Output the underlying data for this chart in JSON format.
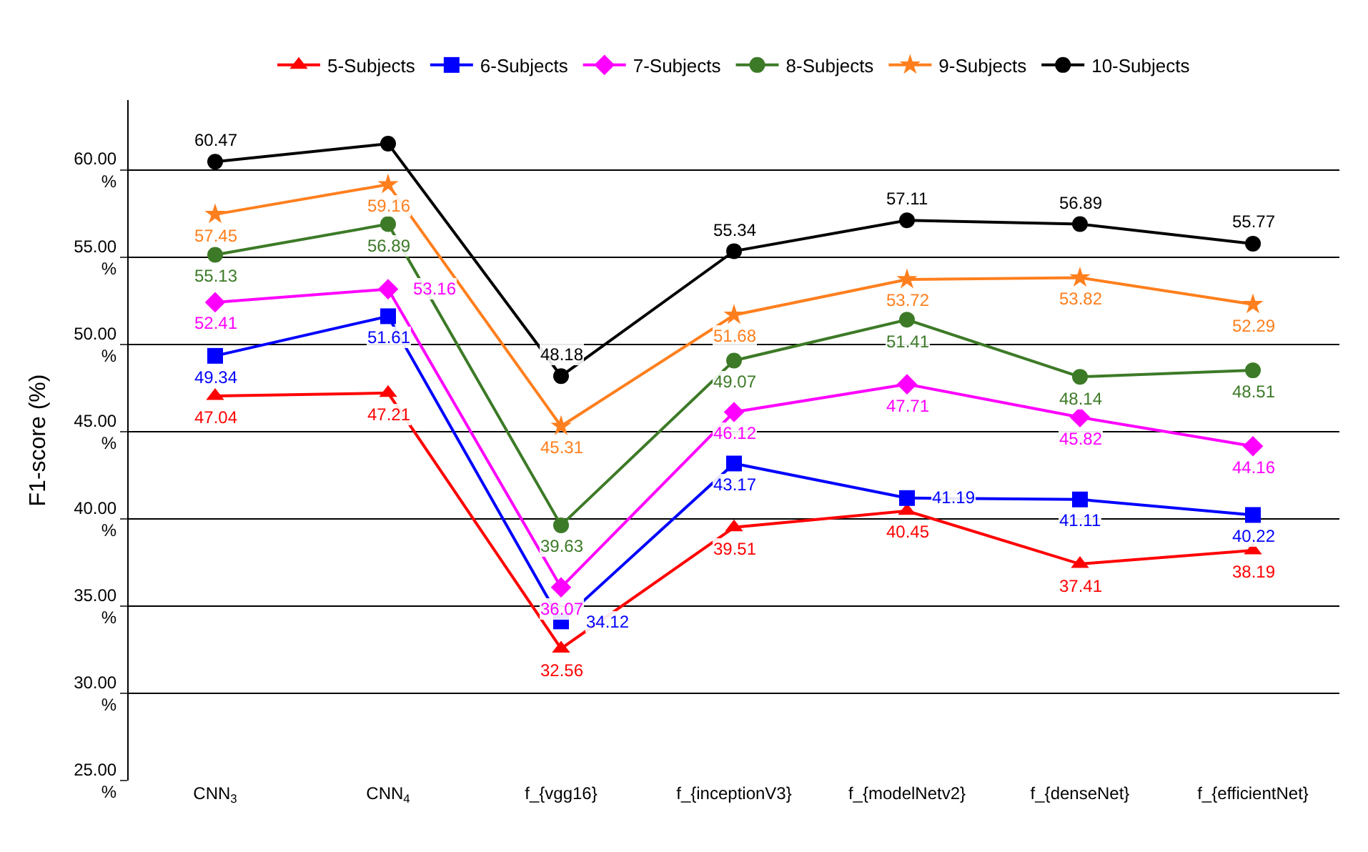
{
  "chart_data": {
    "type": "line",
    "ylabel": "F1-score (%)",
    "categories": [
      "CNN$_{3}$",
      "CNN$_{4}$",
      "f_{vgg16}",
      "f_{inceptionV3}",
      "f_{modelNetv2}",
      "f_{denseNet}",
      "f_{efficientNet}"
    ],
    "ylim": [
      25,
      64
    ],
    "yticks": [
      {
        "value": 25,
        "label": "25.00\n%"
      },
      {
        "value": 30,
        "label": "30.00\n%"
      },
      {
        "value": 35,
        "label": "35.00\n%"
      },
      {
        "value": 40,
        "label": "40.00\n%"
      },
      {
        "value": 45,
        "label": "45.00\n%"
      },
      {
        "value": 50,
        "label": "50.00\n%"
      },
      {
        "value": 55,
        "label": "55.00\n%"
      },
      {
        "value": 60,
        "label": "60.00\n%"
      }
    ],
    "grid": "y",
    "legend": "top",
    "series": [
      {
        "name": "5-Subjects",
        "color": "#ff0000",
        "marker": "triangle",
        "values": [
          47.04,
          47.21,
          32.56,
          39.51,
          40.45,
          37.41,
          38.19
        ],
        "value_labels": [
          "47.04",
          "47.21",
          "32.56",
          "39.51",
          "40.45",
          "37.41",
          "38.19"
        ]
      },
      {
        "name": "6-Subjects",
        "color": "#0000ff",
        "marker": "square",
        "values": [
          49.34,
          51.61,
          34.12,
          43.17,
          41.19,
          41.11,
          40.22
        ],
        "value_labels": [
          "49.34",
          "51.61",
          "34.12",
          "43.17",
          "41.19",
          "41.11",
          "40.22"
        ]
      },
      {
        "name": "7-Subjects",
        "color": "#ff00ff",
        "marker": "diamond",
        "values": [
          52.41,
          53.16,
          36.07,
          46.12,
          47.71,
          45.82,
          44.16
        ],
        "value_labels": [
          "52.41",
          "53.16",
          "36.07",
          "46.12",
          "47.71",
          "45.82",
          "44.16"
        ]
      },
      {
        "name": "8-Subjects",
        "color": "#3d7a27",
        "marker": "circle",
        "values": [
          55.13,
          56.89,
          39.63,
          49.07,
          51.41,
          48.14,
          48.51
        ],
        "value_labels": [
          "55.13",
          "56.89",
          "39.63",
          "49.07",
          "51.41",
          "48.14",
          "48.51"
        ]
      },
      {
        "name": "9-Subjects",
        "color": "#ff7f1e",
        "marker": "star",
        "values": [
          57.45,
          59.16,
          45.31,
          51.68,
          53.72,
          53.82,
          52.29
        ],
        "value_labels": [
          "57.45",
          "59.16",
          "45.31",
          "51.68",
          "53.72",
          "53.82",
          "52.29"
        ]
      },
      {
        "name": "10-Subjects",
        "color": "#000000",
        "marker": "circle",
        "values": [
          60.47,
          61.5,
          48.18,
          55.34,
          57.11,
          56.89,
          55.77
        ],
        "value_labels": [
          "60.47",
          null,
          "48.18",
          "55.34",
          "57.11",
          "56.89",
          "55.77"
        ]
      }
    ]
  }
}
